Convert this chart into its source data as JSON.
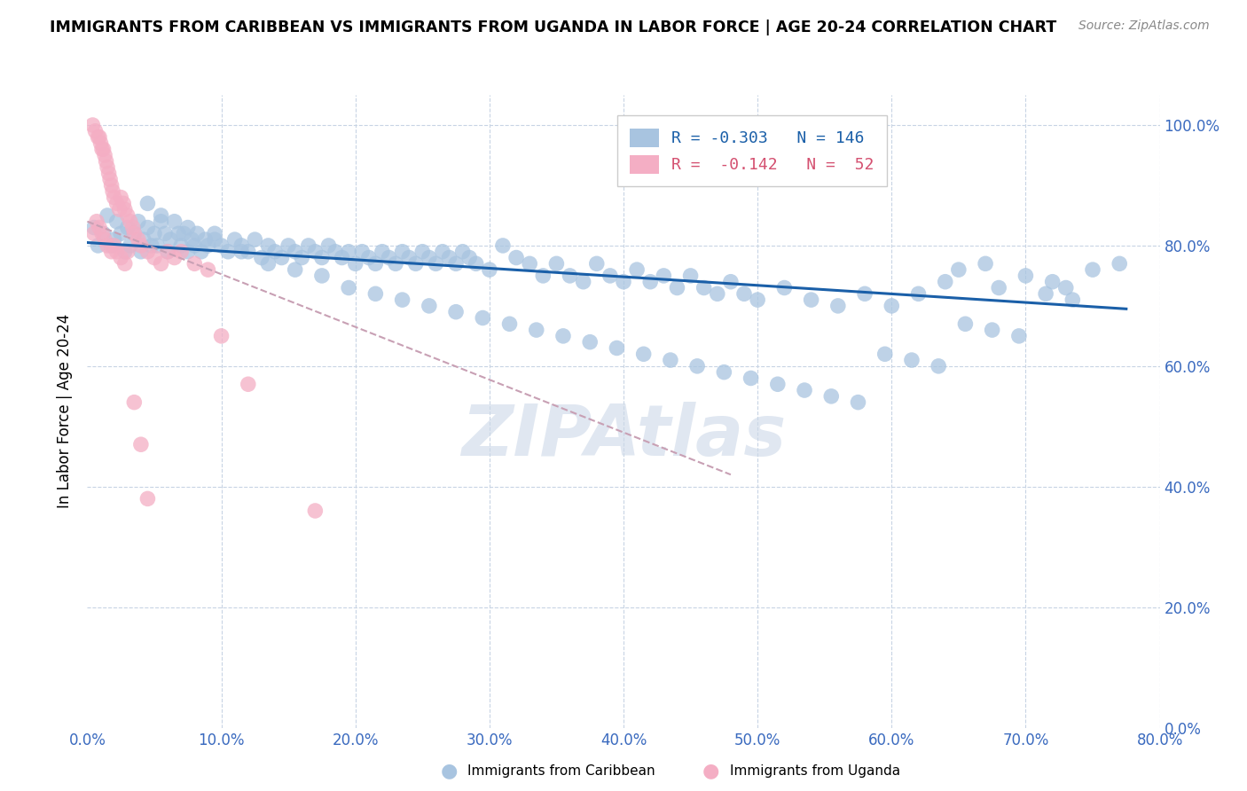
{
  "title": "IMMIGRANTS FROM CARIBBEAN VS IMMIGRANTS FROM UGANDA IN LABOR FORCE | AGE 20-24 CORRELATION CHART",
  "source": "Source: ZipAtlas.com",
  "ylabel": "In Labor Force | Age 20-24",
  "xlim": [
    0.0,
    0.8
  ],
  "ylim": [
    0.0,
    1.05
  ],
  "xticks": [
    0.0,
    0.1,
    0.2,
    0.3,
    0.4,
    0.5,
    0.6,
    0.7,
    0.8
  ],
  "yticks": [
    0.0,
    0.2,
    0.4,
    0.6,
    0.8,
    1.0
  ],
  "xtick_labels": [
    "0.0%",
    "10.0%",
    "20.0%",
    "30.0%",
    "40.0%",
    "50.0%",
    "60.0%",
    "70.0%",
    "80.0%"
  ],
  "ytick_labels_right": [
    "0.0%",
    "20.0%",
    "40.0%",
    "60.0%",
    "80.0%",
    "100.0%"
  ],
  "blue_R": -0.303,
  "blue_N": 146,
  "pink_R": -0.142,
  "pink_N": 52,
  "blue_color": "#a8c4e0",
  "blue_line_color": "#1a5fa8",
  "pink_color": "#f4aec4",
  "pink_line_color": "#d45070",
  "pink_dash_color": "#c8a0b4",
  "watermark_color": "#ccd8e8",
  "axis_color": "#3a6abf",
  "grid_color": "#c8d4e4",
  "title_fontsize": 12.5,
  "legend_fontsize": 13,
  "tick_fontsize": 12,
  "ylabel_fontsize": 12,
  "blue_scatter_x": [
    0.005,
    0.008,
    0.012,
    0.015,
    0.018,
    0.02,
    0.022,
    0.025,
    0.028,
    0.03,
    0.032,
    0.035,
    0.038,
    0.04,
    0.042,
    0.045,
    0.048,
    0.05,
    0.052,
    0.055,
    0.058,
    0.06,
    0.062,
    0.065,
    0.068,
    0.07,
    0.072,
    0.075,
    0.078,
    0.08,
    0.082,
    0.085,
    0.088,
    0.09,
    0.095,
    0.1,
    0.105,
    0.11,
    0.115,
    0.12,
    0.125,
    0.13,
    0.135,
    0.14,
    0.145,
    0.15,
    0.155,
    0.16,
    0.165,
    0.17,
    0.175,
    0.18,
    0.185,
    0.19,
    0.195,
    0.2,
    0.205,
    0.21,
    0.215,
    0.22,
    0.225,
    0.23,
    0.235,
    0.24,
    0.245,
    0.25,
    0.255,
    0.26,
    0.265,
    0.27,
    0.275,
    0.28,
    0.285,
    0.29,
    0.3,
    0.31,
    0.32,
    0.33,
    0.34,
    0.35,
    0.36,
    0.37,
    0.38,
    0.39,
    0.4,
    0.41,
    0.42,
    0.43,
    0.44,
    0.45,
    0.46,
    0.47,
    0.48,
    0.49,
    0.5,
    0.52,
    0.54,
    0.56,
    0.58,
    0.6,
    0.62,
    0.64,
    0.65,
    0.67,
    0.68,
    0.7,
    0.72,
    0.73,
    0.75,
    0.77,
    0.055,
    0.075,
    0.095,
    0.115,
    0.135,
    0.155,
    0.175,
    0.195,
    0.215,
    0.235,
    0.255,
    0.275,
    0.295,
    0.315,
    0.335,
    0.355,
    0.375,
    0.395,
    0.415,
    0.435,
    0.455,
    0.475,
    0.495,
    0.515,
    0.535,
    0.555,
    0.575,
    0.595,
    0.615,
    0.635,
    0.655,
    0.675,
    0.695,
    0.715,
    0.735,
    0.045
  ],
  "blue_scatter_y": [
    0.83,
    0.8,
    0.82,
    0.85,
    0.8,
    0.81,
    0.84,
    0.82,
    0.79,
    0.83,
    0.8,
    0.82,
    0.84,
    0.79,
    0.81,
    0.83,
    0.8,
    0.82,
    0.8,
    0.84,
    0.82,
    0.79,
    0.81,
    0.84,
    0.82,
    0.8,
    0.82,
    0.79,
    0.81,
    0.8,
    0.82,
    0.79,
    0.81,
    0.8,
    0.82,
    0.8,
    0.79,
    0.81,
    0.8,
    0.79,
    0.81,
    0.78,
    0.8,
    0.79,
    0.78,
    0.8,
    0.79,
    0.78,
    0.8,
    0.79,
    0.78,
    0.8,
    0.79,
    0.78,
    0.79,
    0.77,
    0.79,
    0.78,
    0.77,
    0.79,
    0.78,
    0.77,
    0.79,
    0.78,
    0.77,
    0.79,
    0.78,
    0.77,
    0.79,
    0.78,
    0.77,
    0.79,
    0.78,
    0.77,
    0.76,
    0.8,
    0.78,
    0.77,
    0.75,
    0.77,
    0.75,
    0.74,
    0.77,
    0.75,
    0.74,
    0.76,
    0.74,
    0.75,
    0.73,
    0.75,
    0.73,
    0.72,
    0.74,
    0.72,
    0.71,
    0.73,
    0.71,
    0.7,
    0.72,
    0.7,
    0.72,
    0.74,
    0.76,
    0.77,
    0.73,
    0.75,
    0.74,
    0.73,
    0.76,
    0.77,
    0.85,
    0.83,
    0.81,
    0.79,
    0.77,
    0.76,
    0.75,
    0.73,
    0.72,
    0.71,
    0.7,
    0.69,
    0.68,
    0.67,
    0.66,
    0.65,
    0.64,
    0.63,
    0.62,
    0.61,
    0.6,
    0.59,
    0.58,
    0.57,
    0.56,
    0.55,
    0.54,
    0.62,
    0.61,
    0.6,
    0.67,
    0.66,
    0.65,
    0.72,
    0.71,
    0.87
  ],
  "pink_scatter_x": [
    0.004,
    0.006,
    0.008,
    0.009,
    0.01,
    0.011,
    0.012,
    0.013,
    0.014,
    0.015,
    0.016,
    0.017,
    0.018,
    0.019,
    0.02,
    0.022,
    0.024,
    0.025,
    0.027,
    0.028,
    0.03,
    0.032,
    0.034,
    0.035,
    0.038,
    0.04,
    0.045,
    0.05,
    0.055,
    0.06,
    0.065,
    0.07,
    0.08,
    0.09,
    0.1,
    0.12,
    0.005,
    0.007,
    0.009,
    0.011,
    0.013,
    0.015,
    0.018,
    0.02,
    0.022,
    0.025,
    0.028,
    0.03,
    0.035,
    0.04,
    0.045,
    0.17
  ],
  "pink_scatter_y": [
    1.0,
    0.99,
    0.98,
    0.98,
    0.97,
    0.96,
    0.96,
    0.95,
    0.94,
    0.93,
    0.92,
    0.91,
    0.9,
    0.89,
    0.88,
    0.87,
    0.86,
    0.88,
    0.87,
    0.86,
    0.85,
    0.84,
    0.83,
    0.82,
    0.81,
    0.8,
    0.79,
    0.78,
    0.77,
    0.79,
    0.78,
    0.79,
    0.77,
    0.76,
    0.65,
    0.57,
    0.82,
    0.84,
    0.83,
    0.82,
    0.81,
    0.8,
    0.79,
    0.8,
    0.79,
    0.78,
    0.77,
    0.79,
    0.54,
    0.47,
    0.38,
    0.36
  ],
  "blue_trend_x": [
    0.0,
    0.775
  ],
  "blue_trend_y": [
    0.805,
    0.695
  ],
  "pink_trend_x": [
    0.0,
    0.48
  ],
  "pink_trend_y": [
    0.84,
    0.42
  ]
}
